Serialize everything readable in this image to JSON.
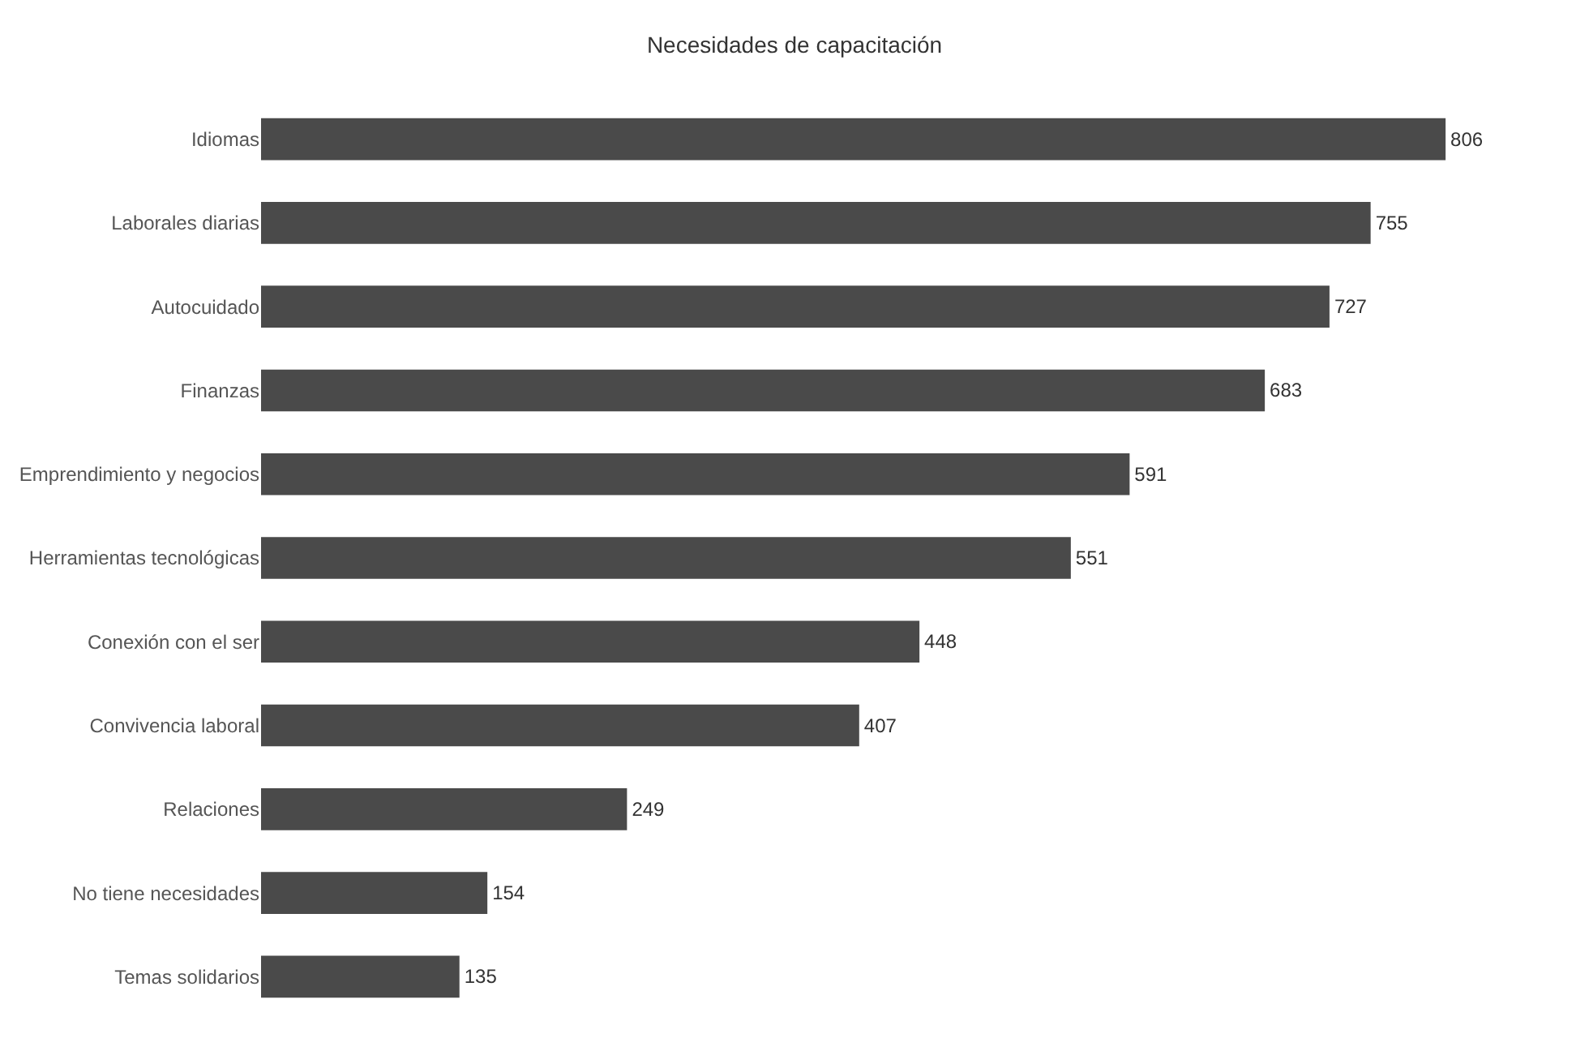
{
  "chart_data": {
    "type": "bar",
    "orientation": "horizontal",
    "title": "Necesidades de capacitación",
    "categories": [
      "Idiomas",
      "Laborales diarias",
      "Autocuidado",
      "Finanzas",
      "Emprendimiento y negocios",
      "Herramientas tecnológicas",
      "Conexión con el ser",
      "Convivencia laboral",
      "Relaciones",
      "No tiene necesidades",
      "Temas solidarios"
    ],
    "values": [
      806,
      755,
      727,
      683,
      591,
      551,
      448,
      407,
      249,
      154,
      135
    ],
    "color": "#4a4a4a",
    "data_labels": true
  }
}
